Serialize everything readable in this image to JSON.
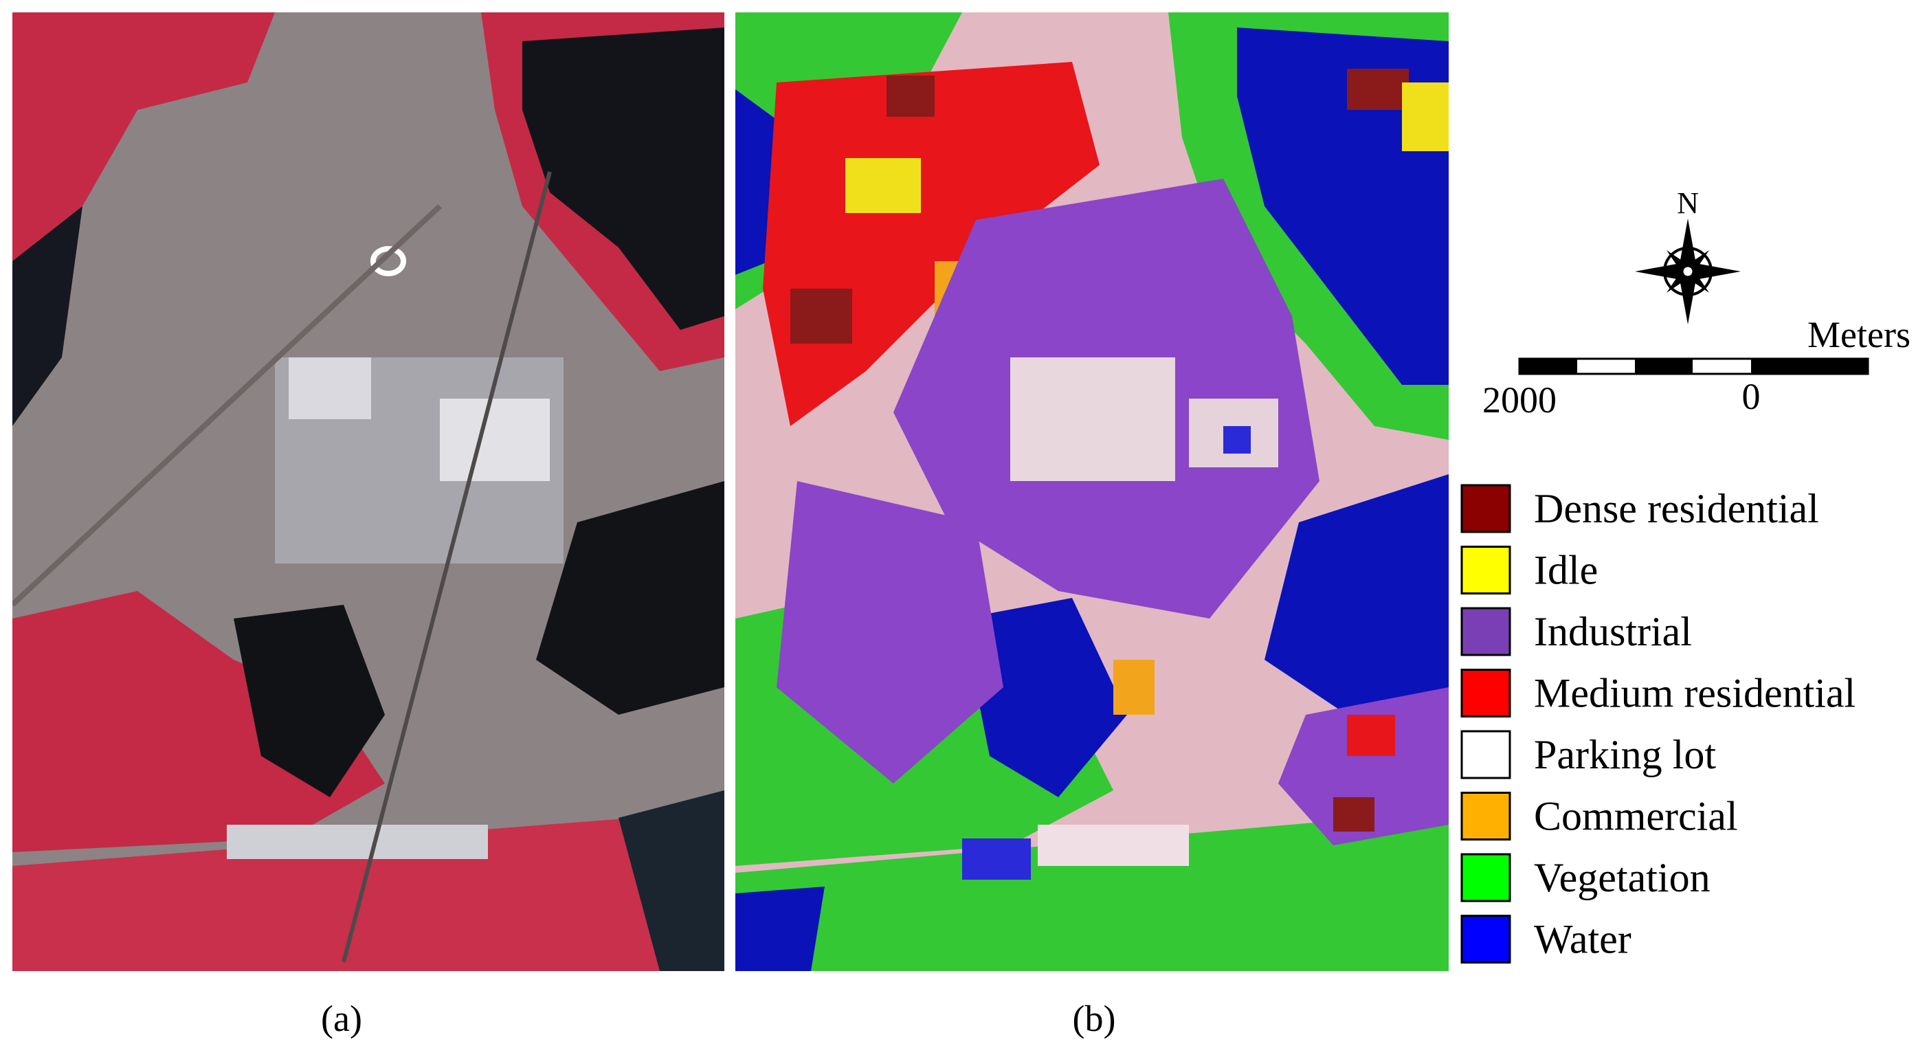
{
  "panels": [
    {
      "label": "(a)"
    },
    {
      "label": "(b)"
    }
  ],
  "compass": {
    "label": "N"
  },
  "scale_bar": {
    "unit": "Meters",
    "labels": [
      "2000",
      "0"
    ]
  },
  "legend": [
    {
      "label": "Dense residential",
      "color": "#8b0000"
    },
    {
      "label": "Idle",
      "color": "#ffff00"
    },
    {
      "label": "Industrial",
      "color": "#7b3fb5"
    },
    {
      "label": "Medium residential",
      "color": "#ff0000"
    },
    {
      "label": "Parking lot",
      "color": "#ffffff"
    },
    {
      "label": "Commercial",
      "color": "#ffb000"
    },
    {
      "label": "Vegetation",
      "color": "#00ff00"
    },
    {
      "label": "Water",
      "color": "#0000ff"
    }
  ]
}
